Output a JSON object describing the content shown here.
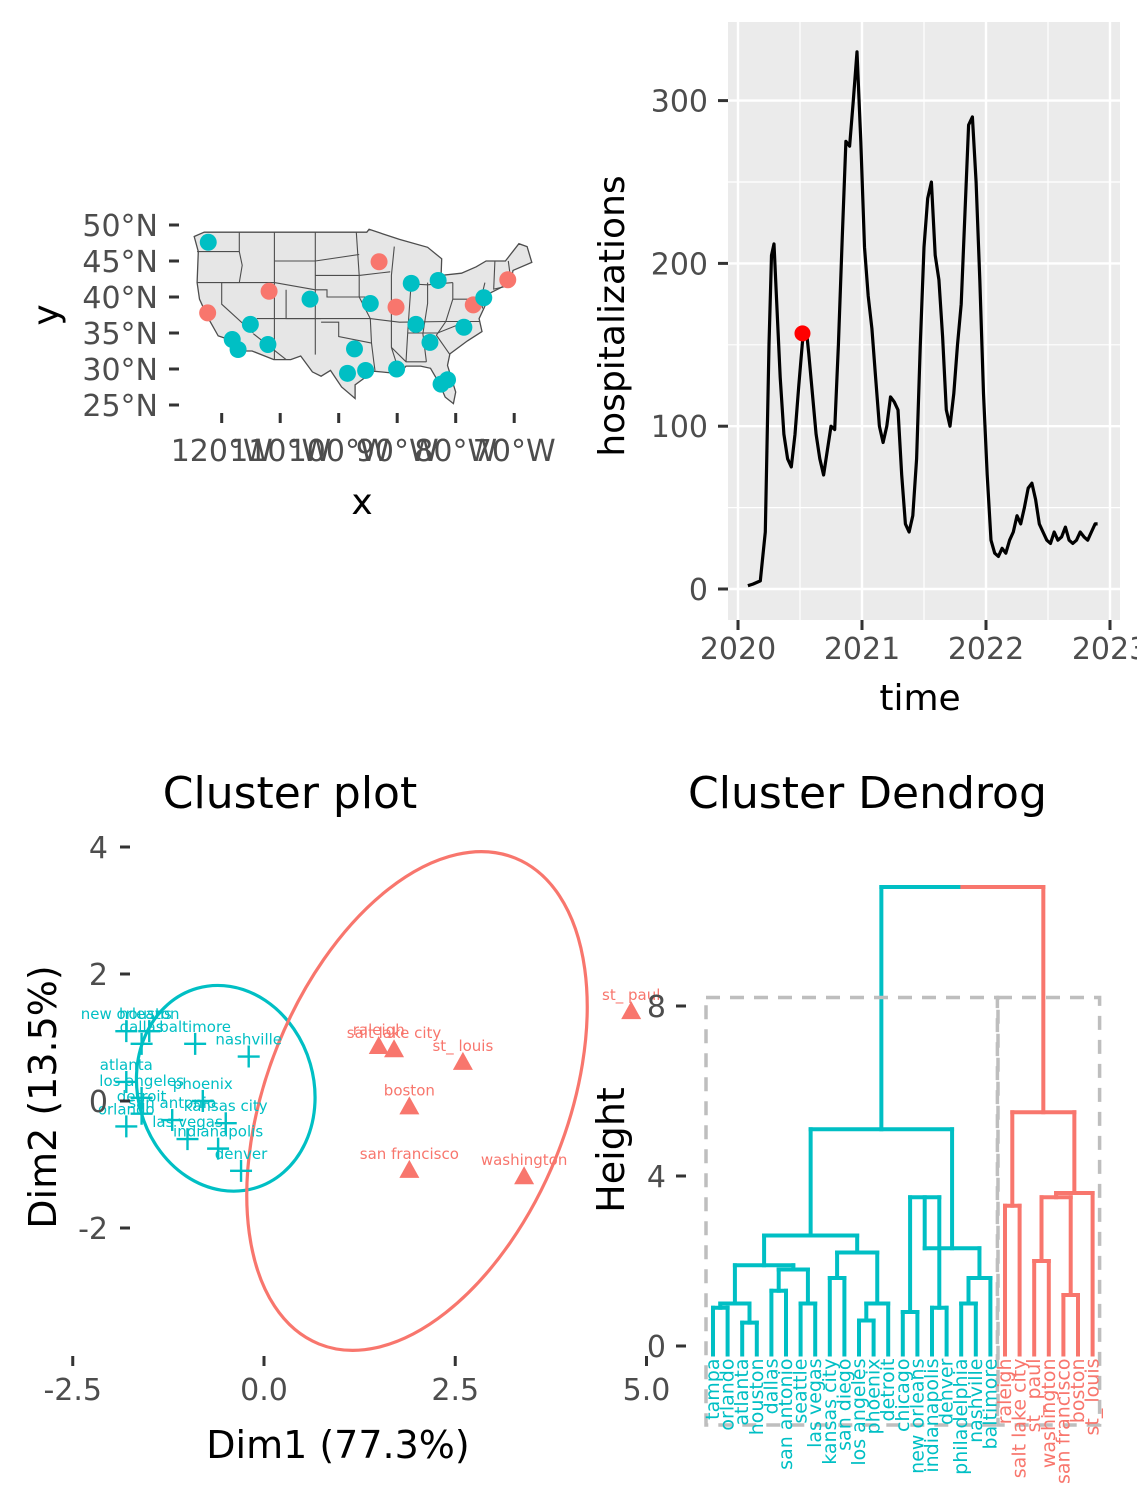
{
  "chart_data": [
    {
      "type": "scatter",
      "panel": "map",
      "title": "",
      "xlabel": "x",
      "ylabel": "y",
      "x_ticks": [
        "120°W",
        "110°W",
        "100°W",
        "90°W",
        "80°W",
        "70°W"
      ],
      "y_ticks": [
        "25°N",
        "30°N",
        "35°N",
        "40°N",
        "45°N",
        "50°N"
      ],
      "xlim": [
        -125,
        -66
      ],
      "ylim": [
        24,
        50
      ],
      "background": "#e6e6e6",
      "points": [
        {
          "x": -122.3,
          "y": 47.6,
          "cluster": 2
        },
        {
          "x": -122.4,
          "y": 37.8,
          "cluster": 1
        },
        {
          "x": -118.2,
          "y": 34.1,
          "cluster": 2
        },
        {
          "x": -117.2,
          "y": 32.7,
          "cluster": 2
        },
        {
          "x": -115.1,
          "y": 36.2,
          "cluster": 2
        },
        {
          "x": -112.1,
          "y": 33.4,
          "cluster": 2
        },
        {
          "x": -111.9,
          "y": 40.8,
          "cluster": 1
        },
        {
          "x": -104.9,
          "y": 39.7,
          "cluster": 2
        },
        {
          "x": -97.3,
          "y": 32.8,
          "cluster": 2
        },
        {
          "x": -98.5,
          "y": 29.4,
          "cluster": 2
        },
        {
          "x": -95.4,
          "y": 29.8,
          "cluster": 2
        },
        {
          "x": -93.1,
          "y": 44.9,
          "cluster": 1
        },
        {
          "x": -94.6,
          "y": 39.1,
          "cluster": 2
        },
        {
          "x": -90.2,
          "y": 38.6,
          "cluster": 1
        },
        {
          "x": -90.1,
          "y": 30.0,
          "cluster": 2
        },
        {
          "x": -87.6,
          "y": 41.9,
          "cluster": 2
        },
        {
          "x": -86.8,
          "y": 36.2,
          "cluster": 2
        },
        {
          "x": -84.4,
          "y": 33.7,
          "cluster": 2
        },
        {
          "x": -83.0,
          "y": 42.3,
          "cluster": 2
        },
        {
          "x": -81.4,
          "y": 28.5,
          "cluster": 2
        },
        {
          "x": -82.5,
          "y": 27.9,
          "cluster": 2
        },
        {
          "x": -78.6,
          "y": 35.8,
          "cluster": 2
        },
        {
          "x": -77.0,
          "y": 38.9,
          "cluster": 1
        },
        {
          "x": -75.2,
          "y": 39.9,
          "cluster": 2
        },
        {
          "x": -71.1,
          "y": 42.4,
          "cluster": 1
        }
      ]
    },
    {
      "type": "line",
      "panel": "hospitalizations",
      "title": "",
      "xlabel": "time",
      "ylabel": "hospitalizations",
      "x_ticks": [
        "2020",
        "2021",
        "2022",
        "2023"
      ],
      "y_ticks": [
        "0",
        "100",
        "200",
        "300"
      ],
      "xlim": [
        2019.97,
        2023.0
      ],
      "ylim": [
        -20,
        345
      ],
      "background": "#ebebeb",
      "series": [
        {
          "color": "#000000",
          "x": [
            2020.08,
            2020.12,
            2020.18,
            2020.22,
            2020.25,
            2020.27,
            2020.29,
            2020.31,
            2020.34,
            2020.37,
            2020.4,
            2020.43,
            2020.46,
            2020.49,
            2020.52,
            2020.55,
            2020.57,
            2020.6,
            2020.63,
            2020.66,
            2020.69,
            2020.72,
            2020.75,
            2020.78,
            2020.81,
            2020.84,
            2020.87,
            2020.9,
            2020.93,
            2020.96,
            2020.99,
            2021.02,
            2021.05,
            2021.08,
            2021.11,
            2021.14,
            2021.17,
            2021.2,
            2021.23,
            2021.26,
            2021.29,
            2021.32,
            2021.35,
            2021.38,
            2021.41,
            2021.44,
            2021.47,
            2021.5,
            2021.53,
            2021.56,
            2021.59,
            2021.62,
            2021.65,
            2021.68,
            2021.71,
            2021.74,
            2021.77,
            2021.8,
            2021.83,
            2021.86,
            2021.89,
            2021.92,
            2021.95,
            2021.98,
            2022.01,
            2022.04,
            2022.07,
            2022.1,
            2022.13,
            2022.16,
            2022.19,
            2022.22,
            2022.25,
            2022.28,
            2022.31,
            2022.34,
            2022.37,
            2022.4,
            2022.43,
            2022.46,
            2022.49,
            2022.52,
            2022.55,
            2022.58,
            2022.61,
            2022.64,
            2022.67,
            2022.7,
            2022.73,
            2022.76,
            2022.79,
            2022.82,
            2022.85,
            2022.88,
            2022.9
          ],
          "y": [
            2,
            3,
            5,
            35,
            150,
            205,
            212,
            180,
            130,
            95,
            80,
            75,
            95,
            125,
            152,
            160,
            145,
            120,
            95,
            80,
            70,
            85,
            100,
            98,
            150,
            215,
            275,
            272,
            300,
            330,
            275,
            210,
            180,
            160,
            130,
            100,
            90,
            100,
            118,
            115,
            110,
            70,
            40,
            35,
            45,
            80,
            150,
            210,
            240,
            250,
            205,
            190,
            155,
            110,
            100,
            120,
            150,
            175,
            230,
            285,
            290,
            250,
            190,
            120,
            70,
            30,
            22,
            20,
            25,
            22,
            30,
            35,
            45,
            40,
            50,
            62,
            65,
            55,
            40,
            35,
            30,
            28,
            35,
            30,
            32,
            38,
            30,
            28,
            30,
            35,
            32,
            30,
            35,
            40,
            40
          ]
        }
      ],
      "highlight": {
        "x": 2020.52,
        "y": 157,
        "color": "#ff0000"
      }
    },
    {
      "type": "scatter",
      "panel": "cluster-plot",
      "title": "Cluster plot",
      "xlabel": "Dim1 (77.3%)",
      "ylabel": "Dim2 (13.5%)",
      "x_ticks": [
        "-2.5",
        "0.0",
        "2.5",
        "5.0"
      ],
      "y_ticks": [
        "-2",
        "0",
        "2",
        "4"
      ],
      "xlim": [
        -4,
        7
      ],
      "ylim": [
        -4,
        4
      ],
      "clusters": [
        {
          "color": "#00bfc4",
          "shape": "plus",
          "points": [
            {
              "label": "new orleans",
              "x": -1.8,
              "y": 1.1
            },
            {
              "label": "houston",
              "x": -1.5,
              "y": 1.1
            },
            {
              "label": "dallas",
              "x": -1.6,
              "y": 0.9
            },
            {
              "label": "baltimore",
              "x": -0.9,
              "y": 0.9
            },
            {
              "label": "nashville",
              "x": -0.2,
              "y": 0.7
            },
            {
              "label": "atlanta",
              "x": -1.8,
              "y": 0.3
            },
            {
              "label": "los angeles",
              "x": -1.6,
              "y": 0.05
            },
            {
              "label": "phoenix",
              "x": -0.8,
              "y": 0.0
            },
            {
              "label": "detroit",
              "x": -1.6,
              "y": -0.2
            },
            {
              "label": "orlando",
              "x": -1.8,
              "y": -0.4
            },
            {
              "label": "san antonio",
              "x": -1.2,
              "y": -0.3
            },
            {
              "label": "kansas city",
              "x": -0.5,
              "y": -0.35
            },
            {
              "label": "las vegas",
              "x": -1.0,
              "y": -0.6
            },
            {
              "label": "indianapolis",
              "x": -0.6,
              "y": -0.75
            },
            {
              "label": "denver",
              "x": -0.3,
              "y": -1.1
            }
          ]
        },
        {
          "color": "#f8766d",
          "shape": "triangle",
          "points": [
            {
              "label": "st_ paul",
              "x": 4.8,
              "y": 1.4
            },
            {
              "label": "raleigh",
              "x": 1.5,
              "y": 0.85
            },
            {
              "label": "salt lake city",
              "x": 1.7,
              "y": 0.8
            },
            {
              "label": "st_ louis",
              "x": 2.6,
              "y": 0.6
            },
            {
              "label": "boston",
              "x": 1.9,
              "y": -0.1
            },
            {
              "label": "san francisco",
              "x": 1.9,
              "y": -1.1
            },
            {
              "label": "washington",
              "x": 3.4,
              "y": -1.2
            }
          ]
        }
      ]
    },
    {
      "type": "dendrogram",
      "panel": "dendrogram",
      "title": "Cluster Dendrog",
      "xlabel": "",
      "ylabel": "Height",
      "y_ticks": [
        "0",
        "4",
        "8"
      ],
      "ylim": [
        -1.2,
        11
      ],
      "leaves": [
        "tampa",
        "orlando",
        "atlanta",
        "houston",
        "dallas",
        "san antonio",
        "seattle",
        "las vegas",
        "kansas city",
        "san diego",
        "los angeles",
        "phoenix",
        "detroit",
        "chicago",
        "new orleans",
        "indianapolis",
        "denver",
        "philadelphia",
        "nashville",
        "baltimore",
        "raleigh",
        "salt lake city",
        "st_ paul",
        "washington",
        "san francisco",
        "boston",
        "st_ louis"
      ],
      "leaf_colors": [
        "#00bfc4",
        "#f8766d"
      ],
      "n_cluster_1": 20,
      "merge_heights": {
        "root": 10.8,
        "cluster_1": 5.1,
        "cluster_2": 5.5
      },
      "cut_height": 8.2
    }
  ]
}
